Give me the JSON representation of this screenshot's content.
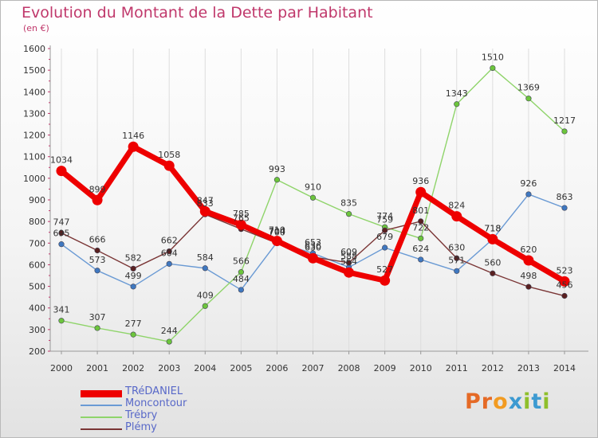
{
  "header": {
    "title": "Evolution du Montant de la Dette par Habitant",
    "subtitle": "(en €)"
  },
  "logo": {
    "letters": [
      "P",
      "r",
      "o",
      "x",
      "i",
      "t",
      "i"
    ]
  },
  "colors": {
    "title": "#c0386b",
    "legend_text": "#5868c8",
    "axis_ticks": "#c0386b",
    "grid": "#dddddd",
    "logo": [
      "#e56a26",
      "#e56a26",
      "#f29b21",
      "#3d9ad1",
      "#8fbf2c",
      "#3d9ad1",
      "#8fbf2c"
    ]
  },
  "chart_data": {
    "type": "line",
    "title": "Evolution du Montant de la Dette par Habitant",
    "ylabel": "(en €)",
    "xlabel": "",
    "x": [
      "2000",
      "2001",
      "2002",
      "2003",
      "2004",
      "2005",
      "2006",
      "2007",
      "2008",
      "2009",
      "2010",
      "2011",
      "2012",
      "2013",
      "2014"
    ],
    "ylim": [
      200,
      1600
    ],
    "yticks": [
      200,
      300,
      400,
      500,
      600,
      700,
      800,
      900,
      1000,
      1100,
      1200,
      1300,
      1400,
      1500,
      1600
    ],
    "grid": "vertical",
    "legend_position": "bottom-left",
    "series": [
      {
        "name": "TRéDANIEL",
        "color": "#ee0000",
        "point_color": "#ee0000",
        "width": 7,
        "values": [
          1034,
          899,
          1146,
          1058,
          847,
          785,
          710,
          630,
          564,
          527,
          936,
          824,
          718,
          620,
          523
        ],
        "labels": [
          "1034",
          "899",
          "1146",
          "1058",
          "847",
          "785",
          "710",
          "630",
          "564",
          "527",
          "936",
          "824",
          "718",
          "620",
          "523"
        ]
      },
      {
        "name": "Moncontour",
        "color": "#6a9ad4",
        "point_color": "#3f78c0",
        "width": 1.4,
        "values": [
          695,
          573,
          499,
          604,
          584,
          484,
          704,
          653,
          588,
          679,
          624,
          571,
          718,
          926,
          863
        ],
        "labels": [
          "695",
          "573",
          "499",
          "604",
          "584",
          "484",
          "704",
          "653",
          "588",
          "679",
          "624",
          "571",
          "718",
          "926",
          "863"
        ]
      },
      {
        "name": "Trébry",
        "color": "#8fd46a",
        "point_color": "#6cc53c",
        "width": 1.4,
        "values": [
          341,
          307,
          277,
          244,
          409,
          566,
          993,
          910,
          835,
          774,
          722,
          1343,
          1510,
          1369,
          1217
        ],
        "labels": [
          "341",
          "307",
          "277",
          "244",
          "409",
          "566",
          "993",
          "910",
          "835",
          "774",
          "722",
          "1343",
          "1510",
          "1369",
          "1217"
        ]
      },
      {
        "name": "Plémy",
        "color": "#7a3535",
        "point_color": "#5a2020",
        "width": 1.4,
        "values": [
          747,
          666,
          582,
          662,
          833,
          765,
          700,
          636,
          609,
          759,
          801,
          630,
          560,
          498,
          456
        ],
        "labels": [
          "747",
          "666",
          "582",
          "662",
          "833",
          "765",
          "700",
          "636",
          "609",
          "759",
          "801",
          "630",
          "560",
          "498",
          "456"
        ]
      }
    ]
  }
}
